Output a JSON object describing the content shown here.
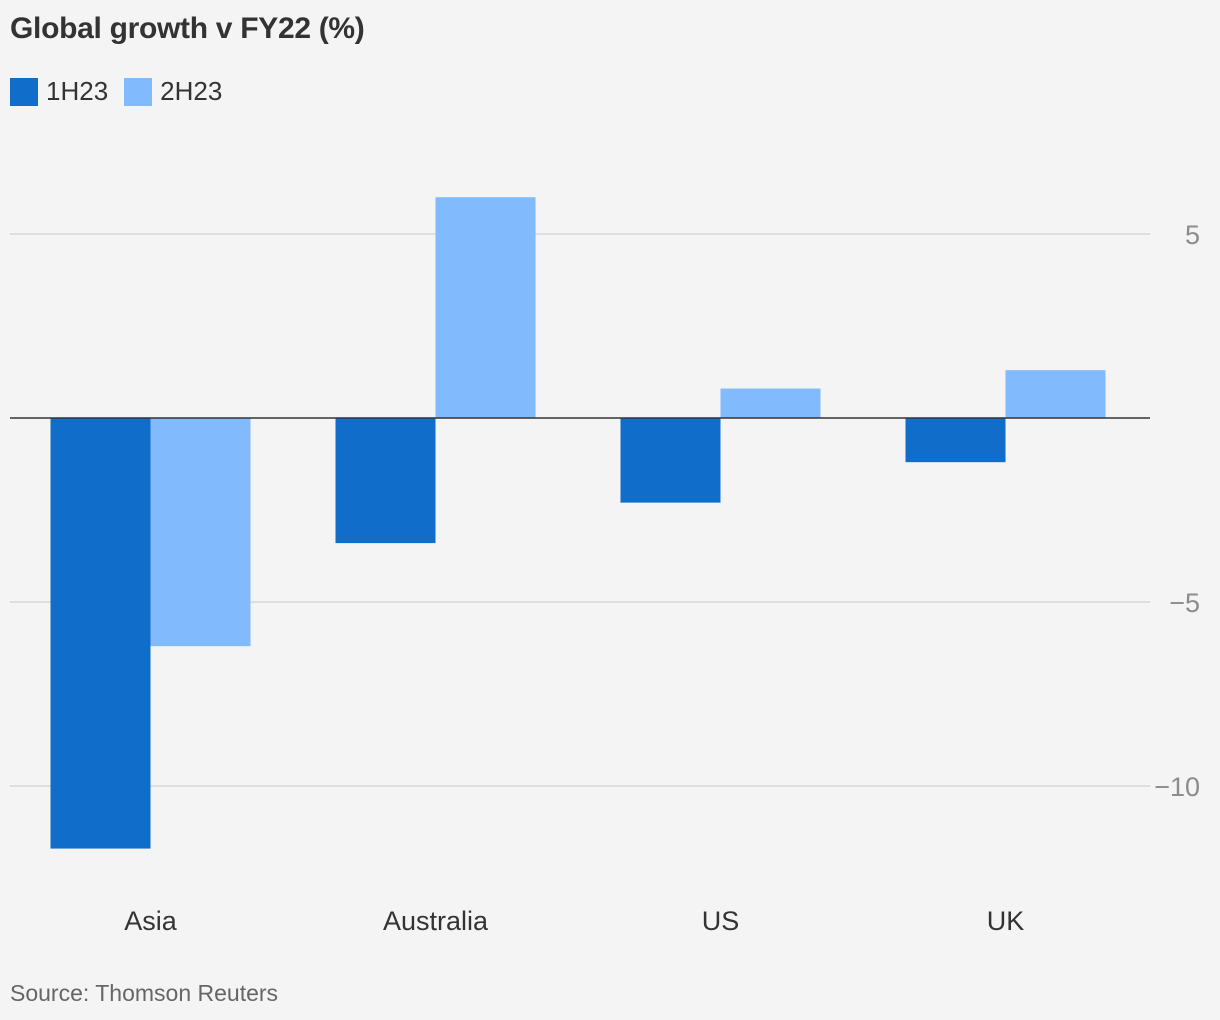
{
  "chart_data": {
    "type": "bar",
    "title": "Global growth v FY22 (%)",
    "categories": [
      "Asia",
      "Australia",
      "US",
      "UK"
    ],
    "series": [
      {
        "name": "1H23",
        "color": "#116dca",
        "values": [
          -11.7,
          -3.4,
          -2.3,
          -1.2
        ]
      },
      {
        "name": "2H23",
        "color": "#81bafd",
        "values": [
          -6.2,
          6.0,
          0.8,
          1.3
        ]
      }
    ],
    "ylim": [
      -12.4,
      7.9
    ],
    "yticks": [
      {
        "value": 5,
        "label": "5"
      },
      {
        "value": -5,
        "label": "−5"
      },
      {
        "value": -10,
        "label": "−10"
      }
    ],
    "grid": true,
    "legend": "top-left",
    "source": "Source: Thomson Reuters"
  }
}
